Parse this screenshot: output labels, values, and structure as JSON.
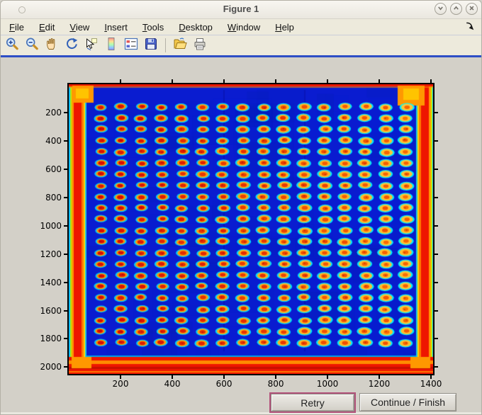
{
  "window": {
    "title": "Figure 1",
    "controls": [
      {
        "name": "shade-button",
        "icon": "chevron-down-icon"
      },
      {
        "name": "maximize-button",
        "icon": "chevron-up-icon"
      },
      {
        "name": "close-button",
        "icon": "close-icon"
      }
    ]
  },
  "menu_bar": {
    "items": [
      {
        "label": "File"
      },
      {
        "label": "Edit"
      },
      {
        "label": "View"
      },
      {
        "label": "Insert"
      },
      {
        "label": "Tools"
      },
      {
        "label": "Desktop"
      },
      {
        "label": "Window"
      },
      {
        "label": "Help"
      }
    ],
    "dock_icon": "dock-figure-arrow"
  },
  "toolbar": {
    "tools": [
      "zoom-in",
      "zoom-out",
      "pan",
      "rotate-3d",
      "data-cursor",
      "insert-colorbar",
      "insert-legend",
      "save-figure",
      "separator",
      "open-file",
      "print-figure"
    ]
  },
  "action_buttons": {
    "retry_label": "Retry",
    "continue_label": "Continue / Finish"
  },
  "chart_data": {
    "type": "heatmap",
    "title": "",
    "xlabel": "",
    "ylabel": "",
    "x_ticks": [
      200,
      400,
      600,
      800,
      1000,
      1200,
      1400
    ],
    "y_ticks": [
      200,
      400,
      600,
      800,
      1000,
      1200,
      1400,
      1600,
      1800,
      2000
    ],
    "x_range": [
      0,
      1408
    ],
    "y_range": [
      0,
      2048
    ],
    "colormap": "jet",
    "grid": {
      "rows": 22,
      "cols": 16
    },
    "description": "Jet-colormap scan of a spotted plate/microarray: deep blue field, 22 rows by 16 columns of elliptical spots (cyan halo, yellow-orange ring, red core; cores redder on left columns, more orange-yellow toward right), saturated red-orange frame along all four image edges with orange corner blobs and thin cyan/yellow edge streaks",
    "colors": {
      "field": "#0a1cd0",
      "halo": "#00dcff",
      "ring_left": "#ff9000",
      "ring_right": "#ffc436",
      "core_left": "#d80c00",
      "core_right": "#ff7a00",
      "frame_red": "#ee1600",
      "frame_orange": "#ff9800"
    }
  }
}
